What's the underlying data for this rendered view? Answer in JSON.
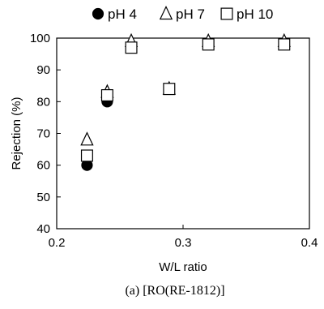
{
  "chart_data": {
    "type": "scatter",
    "xlabel": "W/L ratio",
    "ylabel": "Rejection (%)",
    "xlim": [
      0.2,
      0.4
    ],
    "ylim": [
      40,
      100
    ],
    "xticks": [
      "0.2",
      "0.3",
      "0.4"
    ],
    "yticks": [
      "40",
      "50",
      "60",
      "70",
      "80",
      "90",
      "100"
    ],
    "grid": false,
    "legend_position": "top",
    "series": [
      {
        "name": "pH 4",
        "marker": "filled-circle",
        "points": [
          {
            "x": 0.224,
            "y": 60
          },
          {
            "x": 0.24,
            "y": 80
          },
          {
            "x": 0.259,
            "y": 97
          },
          {
            "x": 0.289,
            "y": 84
          },
          {
            "x": 0.32,
            "y": 98
          },
          {
            "x": 0.38,
            "y": 98
          }
        ]
      },
      {
        "name": "pH 7",
        "marker": "open-triangle",
        "points": [
          {
            "x": 0.224,
            "y": 68
          },
          {
            "x": 0.24,
            "y": 83
          },
          {
            "x": 0.259,
            "y": 99
          },
          {
            "x": 0.289,
            "y": 84
          },
          {
            "x": 0.32,
            "y": 99
          },
          {
            "x": 0.38,
            "y": 99
          }
        ]
      },
      {
        "name": "pH 10",
        "marker": "open-square",
        "points": [
          {
            "x": 0.224,
            "y": 63
          },
          {
            "x": 0.24,
            "y": 82
          },
          {
            "x": 0.259,
            "y": 97
          },
          {
            "x": 0.289,
            "y": 84
          },
          {
            "x": 0.32,
            "y": 98
          },
          {
            "x": 0.38,
            "y": 98
          }
        ]
      }
    ],
    "caption": "(a)  [RO(RE-1812)]"
  }
}
